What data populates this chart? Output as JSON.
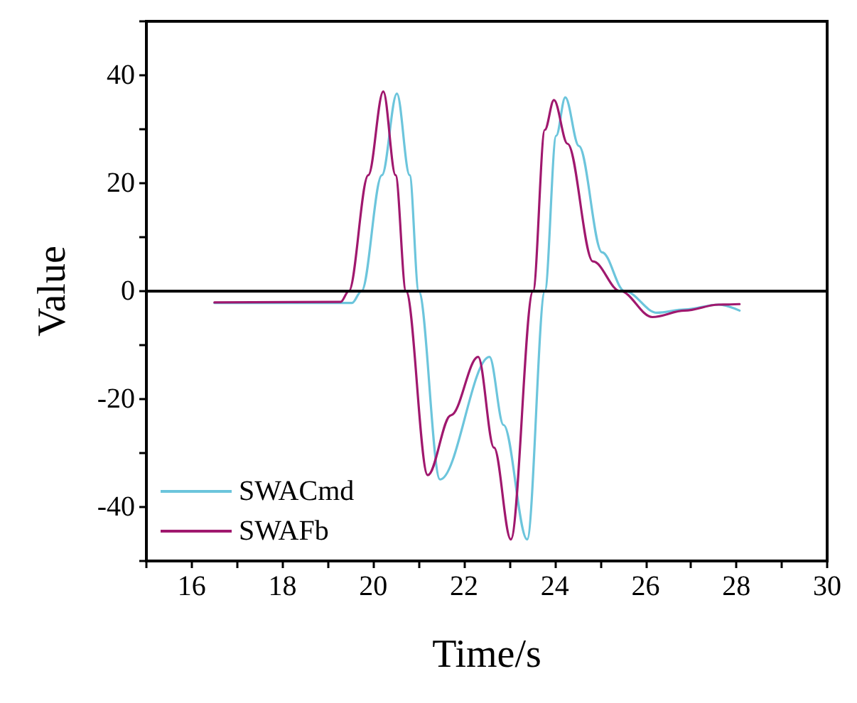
{
  "chart_data": {
    "type": "line",
    "xlabel": "Time/s",
    "ylabel": "Value",
    "xlim": [
      15,
      30
    ],
    "ylim": [
      -50,
      50
    ],
    "xticks": [
      {
        "value": 15,
        "label": null
      },
      16,
      {
        "value": 17,
        "label": null
      },
      18,
      {
        "value": 19,
        "label": null
      },
      20,
      {
        "value": 21,
        "label": null
      },
      22,
      {
        "value": 23,
        "label": null
      },
      24,
      {
        "value": 25,
        "label": null
      },
      26,
      {
        "value": 27,
        "label": null
      },
      28,
      {
        "value": 29,
        "label": null
      },
      30
    ],
    "yticks": [
      {
        "value": -50,
        "label": null
      },
      -40,
      {
        "value": -30,
        "label": null
      },
      -20,
      {
        "value": -10,
        "label": null
      },
      0,
      {
        "value": 10,
        "label": null
      },
      20,
      {
        "value": 30,
        "label": null
      },
      40,
      {
        "value": 50,
        "label": null
      }
    ],
    "grid": false,
    "legend": "bottom left",
    "marker": "none",
    "line_style": "solid",
    "ref_lines": [
      {
        "axis": "y",
        "value": 0,
        "color": "#000000"
      }
    ],
    "series": [
      {
        "name": "SWACmd",
        "color": "#6cc5dc",
        "x": [
          16.5,
          19.53,
          19.74,
          20.19,
          20.52,
          20.8,
          21.0,
          21.47,
          22.56,
          22.87,
          23.39,
          23.78,
          24.03,
          24.23,
          24.53,
          25.04,
          25.54,
          26.25,
          26.86,
          27.61,
          28.07
        ],
        "values": [
          -2.2,
          -2.2,
          0,
          21.5,
          36.6,
          21.5,
          0,
          -34.9,
          -12.2,
          -24.8,
          -46,
          0,
          28.8,
          35.9,
          26.9,
          7.2,
          0,
          -4.0,
          -3.4,
          -2.5,
          -3.6
        ]
      },
      {
        "name": "SWAFb",
        "color": "#a0186e",
        "x": [
          16.5,
          19.28,
          19.46,
          19.89,
          20.22,
          20.49,
          20.72,
          21.2,
          21.71,
          22.31,
          22.66,
          23.03,
          23.52,
          23.78,
          23.98,
          24.28,
          24.84,
          25.44,
          26.15,
          26.86,
          27.61,
          28.07
        ],
        "values": [
          -2.1,
          -2,
          0,
          21.5,
          37,
          21.5,
          0,
          -34.1,
          -23,
          -12.2,
          -29,
          -46,
          0,
          29.9,
          35.4,
          27.3,
          5.5,
          0,
          -4.8,
          -3.6,
          -2.5,
          -2.4
        ]
      }
    ]
  }
}
